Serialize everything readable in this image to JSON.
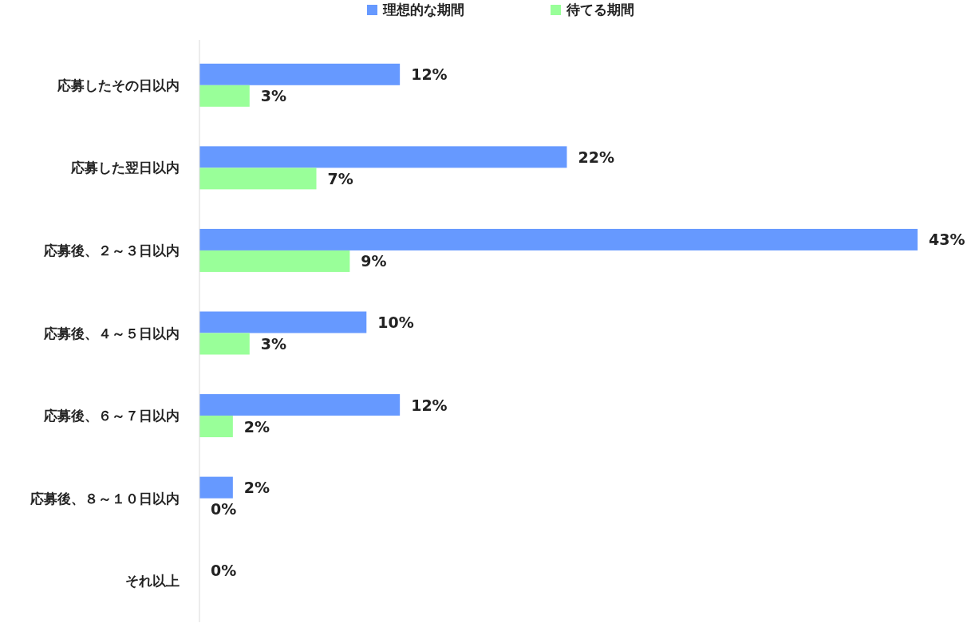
{
  "chart_data": {
    "type": "bar",
    "orientation": "horizontal",
    "legend": "top",
    "categories": [
      "応募したその日以内",
      "応募した翌日以内",
      "応募後、２～３日以内",
      "応募後、４～５日以内",
      "応募後、６～７日以内",
      "応募後、８～１０日以内",
      "それ以上"
    ],
    "series": [
      {
        "name": "理想的な期間",
        "color": "#6699ff",
        "values": [
          12,
          22,
          43,
          10,
          12,
          2,
          0
        ],
        "value_labels": [
          "12%",
          "22%",
          "43%",
          "10%",
          "12%",
          "2%",
          "0%"
        ]
      },
      {
        "name": "待てる期間",
        "color": "#99ff99",
        "values": [
          3,
          7,
          9,
          3,
          2,
          0,
          null
        ],
        "value_labels": [
          "3%",
          "7%",
          "9%",
          "3%",
          "2%",
          "0%",
          null
        ]
      }
    ]
  }
}
